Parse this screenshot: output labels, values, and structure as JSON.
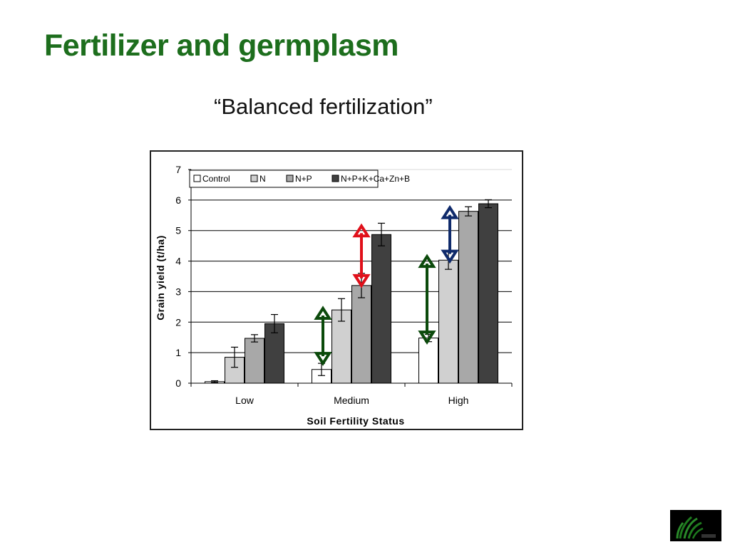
{
  "slide": {
    "title": "Fertilizer and germplasm",
    "subtitle": "“Balanced fertilization”"
  },
  "colors": {
    "title": "#1d6e1d",
    "control": "#ffffff",
    "n": "#d0d0d0",
    "np": "#a8a8a8",
    "full": "#404040",
    "arrow_green": "#0b4a0b",
    "arrow_red": "#e0101a",
    "arrow_navy": "#0f2a6b"
  },
  "icons": {
    "logo": "rice-plant-logo"
  },
  "chart_data": {
    "type": "bar",
    "xlabel": "Soil Fertility Status",
    "ylabel": "Grain yield (t/ha)",
    "categories": [
      "Low",
      "Medium",
      "High"
    ],
    "ylim": [
      0,
      7
    ],
    "yticks": [
      0,
      1,
      2,
      3,
      4,
      5,
      6,
      7
    ],
    "grid": true,
    "legend_position": "top-left",
    "series": [
      {
        "name": "Control",
        "values": [
          0.05,
          0.45,
          1.48
        ],
        "errors": [
          0.03,
          0.2,
          0.12
        ]
      },
      {
        "name": "N",
        "values": [
          0.85,
          2.4,
          4.03
        ],
        "errors": [
          0.33,
          0.37,
          0.3
        ]
      },
      {
        "name": "N+P",
        "values": [
          1.47,
          3.2,
          5.63
        ],
        "errors": [
          0.12,
          0.4,
          0.15
        ]
      },
      {
        "name": "N+P+K+Ca+Zn+B",
        "values": [
          1.95,
          4.87,
          5.88
        ],
        "errors": [
          0.3,
          0.37,
          0.13
        ]
      }
    ],
    "annotations": [
      {
        "type": "double-arrow",
        "category": "Medium",
        "from": 0.65,
        "to": 2.45,
        "color": "green"
      },
      {
        "type": "double-arrow",
        "category": "Medium",
        "from": 3.2,
        "to": 5.15,
        "color": "red"
      },
      {
        "type": "double-arrow",
        "category": "High",
        "from": 1.35,
        "to": 4.15,
        "color": "green"
      },
      {
        "type": "double-arrow",
        "category": "High",
        "from": 4.0,
        "to": 5.75,
        "color": "navy"
      }
    ]
  }
}
